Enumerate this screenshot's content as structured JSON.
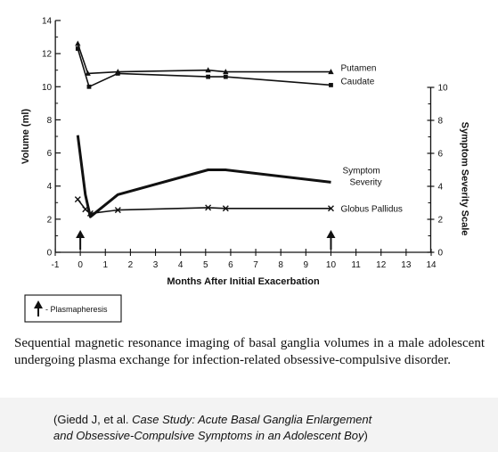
{
  "chart_data": {
    "type": "line",
    "xlabel": "Months After Initial Exacerbation",
    "ylabel": "Volume (ml)",
    "y2label": "Symptom Severity Scale",
    "xlim": [
      -1,
      14
    ],
    "ylim": [
      0,
      14
    ],
    "y2lim": [
      0,
      10
    ],
    "x_ticks": [
      "-1",
      "0",
      "1",
      "2",
      "3",
      "4",
      "5",
      "6",
      "7",
      "8",
      "9",
      "10",
      "11",
      "12",
      "13",
      "14"
    ],
    "y_ticks": [
      "0",
      "2",
      "4",
      "6",
      "8",
      "10",
      "12",
      "14"
    ],
    "y2_ticks": [
      "0",
      "2",
      "4",
      "6",
      "8",
      "10"
    ],
    "grid": false,
    "series": [
      {
        "name": "Putamen",
        "axis": "left",
        "marker": "triangle",
        "stroke": "thin",
        "x": [
          -0.1,
          0.3,
          1.5,
          5.1,
          5.8,
          10
        ],
        "y": [
          12.6,
          10.8,
          10.9,
          11.0,
          10.9,
          10.9
        ]
      },
      {
        "name": "Caudate",
        "axis": "left",
        "marker": "square",
        "stroke": "thin",
        "x": [
          -0.1,
          0.35,
          1.5,
          5.1,
          5.8,
          10
        ],
        "y": [
          12.3,
          10.0,
          10.8,
          10.6,
          10.6,
          10.1
        ]
      },
      {
        "name": "Symptom Severity",
        "axis": "right",
        "marker": "none",
        "stroke": "thick",
        "x": [
          -0.1,
          0.2,
          0.4,
          1.5,
          5.1,
          5.8,
          10
        ],
        "y": [
          7.1,
          3.5,
          2.15,
          3.5,
          5.0,
          5.0,
          4.25
        ]
      },
      {
        "name": "Globus Pallidus",
        "axis": "left",
        "marker": "x",
        "stroke": "thin",
        "x": [
          -0.1,
          0.2,
          0.4,
          1.5,
          5.1,
          5.8,
          10
        ],
        "y": [
          3.2,
          2.6,
          2.35,
          2.55,
          2.7,
          2.65,
          2.65
        ]
      }
    ],
    "annotations": [
      {
        "type": "arrow",
        "x": 0
      },
      {
        "type": "arrow",
        "x": 10
      }
    ],
    "legend": {
      "label": "- Plasmapheresis",
      "placement": "bottom-left"
    }
  },
  "caption": "Sequential magnetic resonance imaging of basal ganglia volumes in a male adolescent undergoing plasma exchange for infection-related obsessive-compulsive disorder.",
  "citation": {
    "prefix": "(Giedd J, et al. ",
    "title_line1": "Case Study: Acute Basal Ganglia Enlargement",
    "title_line2": "and Obsessive-Compulsive Symptoms in an Adolescent Boy",
    "suffix": ")"
  }
}
